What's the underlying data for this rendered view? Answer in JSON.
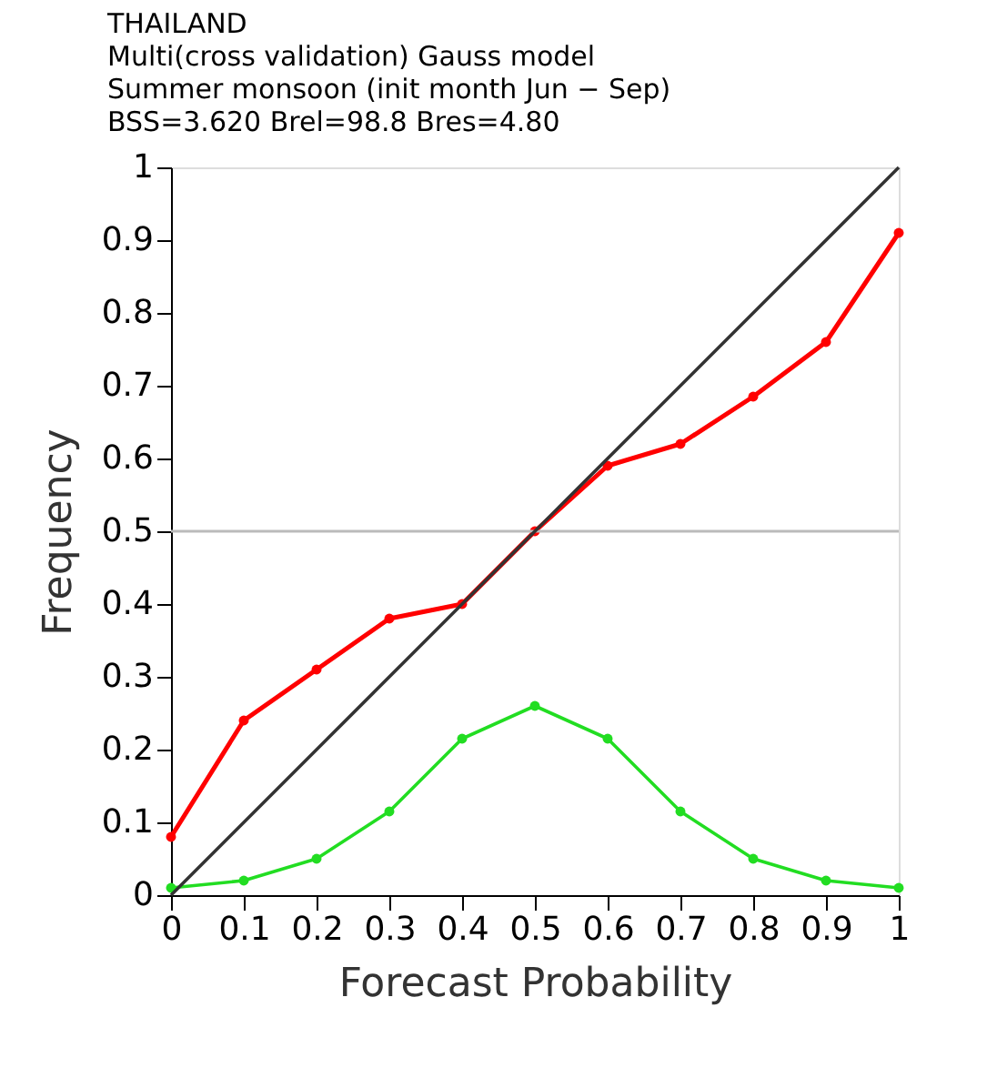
{
  "chart_data": {
    "type": "line",
    "title": [
      "THAILAND",
      "Multi(cross validation) Gauss model",
      "Summer monsoon (init month Jun − Sep)",
      "BSS=3.620   Brel=98.8   Bres=4.80"
    ],
    "xlabel": "Forecast Probability",
    "ylabel": "Frequency",
    "series": [
      {
        "color": "#ff0000",
        "x": [
          0,
          0.1,
          0.2,
          0.3,
          0.4,
          0.5,
          0.6,
          0.7,
          0.8,
          0.9,
          1
        ],
        "values": [
          0.08,
          0.24,
          0.31,
          0.38,
          0.4,
          0.5,
          0.59,
          0.62,
          0.685,
          0.76,
          0.91
        ],
        "marker": "circle"
      },
      {
        "color": "#22dd22",
        "x": [
          0,
          0.1,
          0.2,
          0.3,
          0.4,
          0.5,
          0.6,
          0.7,
          0.8,
          0.9,
          1
        ],
        "values": [
          0.01,
          0.02,
          0.05,
          0.115,
          0.215,
          0.26,
          0.215,
          0.115,
          0.05,
          0.02,
          0.01
        ],
        "marker": "circle"
      },
      {
        "color": "#333333",
        "x": [
          0,
          1
        ],
        "values": [
          0,
          1
        ],
        "marker": "none"
      }
    ],
    "ref_lines": [
      {
        "axis": "y",
        "value": 0.5,
        "color": "#bbbbbb"
      }
    ],
    "xlim": [
      0,
      1
    ],
    "ylim": [
      0,
      1
    ],
    "xticks": [
      0,
      0.1,
      0.2,
      0.3,
      0.4,
      0.5,
      0.6,
      0.7,
      0.8,
      0.9,
      1
    ],
    "yticks": [
      0,
      0.1,
      0.2,
      0.3,
      0.4,
      0.5,
      0.6,
      0.7,
      0.8,
      0.9,
      1
    ],
    "grid": false
  }
}
